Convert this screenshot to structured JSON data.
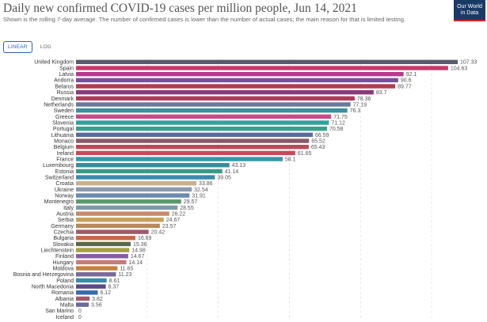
{
  "header": {
    "title": "Daily new confirmed COVID-19 cases per million people, Jun 14, 2021",
    "subtitle": "Shown is the rolling 7-day average. The number of confirmed cases is lower than the number of actual cases; the main reason for that is limited testing."
  },
  "logo": {
    "line1": "Our World",
    "line2": "in Data"
  },
  "scale_toggle": {
    "linear": "LINEAR",
    "log": "LOG",
    "selected": "linear"
  },
  "colors": {
    "logo_bg": "#1a3a66",
    "logo_accent": "#ce261e",
    "toggle_active": "#3360a9"
  },
  "chart_data": {
    "type": "bar",
    "orientation": "horizontal",
    "title": "Daily new confirmed COVID-19 cases per million people, Jun 14, 2021",
    "xlabel": "",
    "ylabel": "",
    "xlim": [
      0,
      110
    ],
    "grid": true,
    "categories": [
      "United Kingdom",
      "Spain",
      "Latvia",
      "Andorra",
      "Belarus",
      "Russia",
      "Denmark",
      "Netherlands",
      "Sweden",
      "Greece",
      "Slovenia",
      "Portugal",
      "Lithuania",
      "Monaco",
      "Belgium",
      "Ireland",
      "France",
      "Luxembourg",
      "Estonia",
      "Switzerland",
      "Croatia",
      "Ukraine",
      "Norway",
      "Montenegro",
      "Italy",
      "Austria",
      "Serbia",
      "Germany",
      "Czechia",
      "Bulgaria",
      "Slovakia",
      "Liechtenstein",
      "Finland",
      "Hungary",
      "Moldova",
      "Bosnia and Herzegovina",
      "Poland",
      "North Macedonia",
      "Romania",
      "Albania",
      "Malta",
      "San Marino",
      "Iceland"
    ],
    "values": [
      107.33,
      104.63,
      92.1,
      90.6,
      89.77,
      83.7,
      78.36,
      77.19,
      76.3,
      71.75,
      71.12,
      70.58,
      66.59,
      65.52,
      65.43,
      61.65,
      58.1,
      43.13,
      41.14,
      39.05,
      33.86,
      32.54,
      31.91,
      29.57,
      28.55,
      26.22,
      24.67,
      23.57,
      20.42,
      16.69,
      15.36,
      14.98,
      14.67,
      14.14,
      11.65,
      11.23,
      8.61,
      8.37,
      6.12,
      3.82,
      3.56,
      0,
      0
    ],
    "value_labels": [
      "107.33",
      "104.63",
      "92.1",
      "90.6",
      "89.77",
      "83.7",
      "78.36",
      "77.19",
      "76.3",
      "71.75",
      "71.12",
      "70.58",
      "66.59",
      "65.52",
      "65.43",
      "61.65",
      "58.1",
      "43.13",
      "41.14",
      "39.05",
      "33.86",
      "32.54",
      "31.91",
      "29.57",
      "28.55",
      "26.22",
      "24.67",
      "23.57",
      "20.42",
      "16.69",
      "15.36",
      "14.98",
      "14.67",
      "14.14",
      "11.65",
      "11.23",
      "8.61",
      "8.37",
      "6.12",
      "3.82",
      "3.56",
      "0",
      "0"
    ],
    "colors": [
      "#5a5a6e",
      "#c73a6b",
      "#b53a8f",
      "#7a4f9c",
      "#b63a52",
      "#8a3a7a",
      "#b03a5a",
      "#6a7a9a",
      "#3a8fa0",
      "#c84a8a",
      "#2fa39a",
      "#3aa08a",
      "#5a6aa0",
      "#8a5a6a",
      "#b84a5a",
      "#c84a5a",
      "#2f9aa8",
      "#3a8a9a",
      "#3a9a8a",
      "#3a8ab0",
      "#c8b08a",
      "#8a9ab0",
      "#6a8ab0",
      "#5a9a6a",
      "#7a9aa8",
      "#c88a6a",
      "#c8a05a",
      "#b88a5a",
      "#a05a6a",
      "#c8664a",
      "#5a6a4a",
      "#a8a03a",
      "#8a5aa0",
      "#c87a7a",
      "#c8803a",
      "#7a6a9a",
      "#3a8ab0",
      "#5a4a8a",
      "#3a6ab0",
      "#a05a6a",
      "#6a6aa0",
      "#888888",
      "#888888"
    ]
  }
}
